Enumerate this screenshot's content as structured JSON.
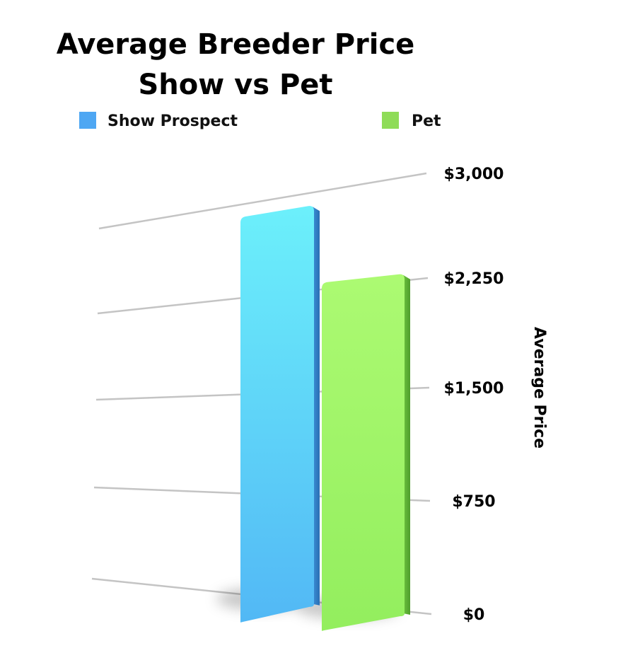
{
  "chart_data": {
    "type": "bar",
    "title": [
      "Average Breeder Price",
      "Show vs Pet"
    ],
    "ylabel": "Average Price",
    "xlabel": "",
    "categories": [
      "Show Prospect",
      "Pet"
    ],
    "values": [
      2900,
      2300
    ],
    "colors": [
      "#4ea7f3",
      "#8fdc58"
    ],
    "ylim": [
      0,
      3000
    ],
    "yticks": [
      0,
      750,
      1500,
      2250,
      3000
    ],
    "ytick_labels": [
      "$0",
      "$750",
      "$1,500",
      "$2,250",
      "$3,000"
    ],
    "legend": [
      {
        "label": "Show Prospect",
        "color": "#4ea7f3"
      },
      {
        "label": "Pet",
        "color": "#8fdc58"
      }
    ],
    "legend_position": "top",
    "grid": true
  }
}
